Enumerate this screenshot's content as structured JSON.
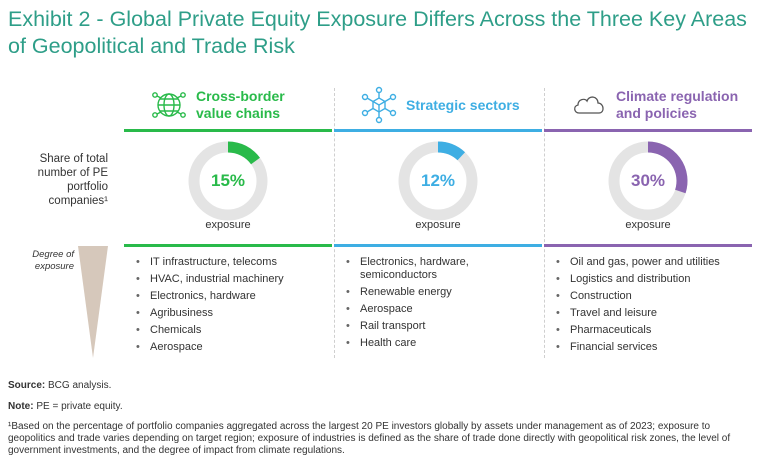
{
  "title": "Exhibit 2 - Global Private Equity Exposure Differs Across the Three Key Areas of Geopolitical and Trade Risk",
  "row_labels": {
    "share": "Share of total number of PE portfolio companies¹",
    "degree": "Degree of exposure"
  },
  "chart_data": {
    "type": "pie",
    "title": "Exhibit 2 - Global Private Equity Exposure Differs Across the Three Key Areas of Geopolitical and Trade Risk",
    "categories": [
      "Cross-border value chains",
      "Strategic sectors",
      "Climate regulation and policies"
    ],
    "values": [
      15,
      12,
      30
    ],
    "unit": "%",
    "value_label": "exposure",
    "colors": [
      "#29ba4a",
      "#3eaee3",
      "#8a64b0"
    ],
    "industries": [
      [
        "IT infrastructure, telecoms",
        "HVAC, industrial machinery",
        "Electronics, hardware",
        "Agribusiness",
        "Chemicals",
        "Aerospace"
      ],
      [
        "Electronics, hardware, semiconductors",
        "Renewable energy",
        "Aerospace",
        "Rail transport",
        "Health care"
      ],
      [
        "Oil and gas, power and utilities",
        "Logistics and distribution",
        "Construction",
        "Travel and leisure",
        "Pharmaceuticals",
        "Financial services"
      ]
    ]
  },
  "columns": [
    {
      "title": "Cross-border value chains",
      "icon": "globe-network-icon",
      "value": 15,
      "value_text": "15%",
      "exposure_label": "exposure",
      "color": "#29ba4a",
      "items": [
        "IT infrastructure, telecoms",
        "HVAC, industrial machinery",
        "Electronics, hardware",
        "Agribusiness",
        "Chemicals",
        "Aerospace"
      ]
    },
    {
      "title": "Strategic sectors",
      "icon": "network-cube-icon",
      "value": 12,
      "value_text": "12%",
      "exposure_label": "exposure",
      "color": "#3eaee3",
      "items": [
        "Electronics, hardware, semiconductors",
        "Renewable energy",
        "Aerospace",
        "Rail transport",
        "Health care"
      ]
    },
    {
      "title": "Climate regulation and policies",
      "icon": "cloud-icon",
      "value": 30,
      "value_text": "30%",
      "exposure_label": "exposure",
      "color": "#8a64b0",
      "items": [
        "Oil and gas, power and utilities",
        "Logistics and distribution",
        "Construction",
        "Travel and leisure",
        "Pharmaceuticals",
        "Financial services"
      ]
    }
  ],
  "footer": {
    "source_label": "Source:",
    "source_text": " BCG analysis.",
    "note_label": "Note:",
    "note_text": " PE = private equity.",
    "footnote": "¹Based on the percentage of portfolio companies aggregated across the largest 20 PE investors globally by assets under management as of 2023; exposure to geopolitics and trade varies depending on target region; exposure of industries is defined as the share of trade done directly with geopolitical risk zones, the level of government investments, and the degree of impact from climate regulations."
  },
  "colors": {
    "title": "#2e9e88",
    "track": "#e4e4e4",
    "wedge": "#d6c8bb"
  }
}
